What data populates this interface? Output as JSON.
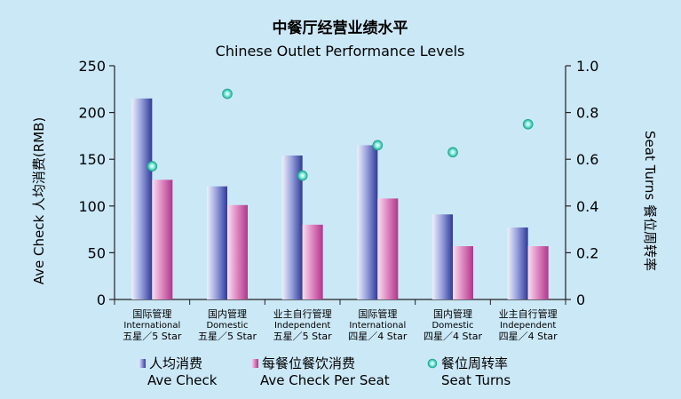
{
  "chart_data": {
    "type": "bar",
    "title": "中餐厅经营业绩水平",
    "subtitle": "Chinese Outlet Performance Levels",
    "ylabel": "Ave Check 人均消费(RMB)",
    "y2label": "Seat Turns 餐位周转率",
    "ylim": [
      0,
      250
    ],
    "y2lim": [
      0,
      1.0
    ],
    "yticks": [
      "0",
      "50",
      "100",
      "150",
      "200",
      "250"
    ],
    "y2ticks": [
      "0",
      "0.2",
      "0.4",
      "0.6",
      "0.8",
      "1.0"
    ],
    "grid": false,
    "legend_position": "bottom",
    "categories": [
      {
        "line1": "国际管理",
        "line2": "International",
        "line3": "五星／5 Star"
      },
      {
        "line1": "国内管理",
        "line2": "Domestic",
        "line3": "五星／5 Star"
      },
      {
        "line1": "业主自行管理",
        "line2": "Independent",
        "line3": "五星／5 Star"
      },
      {
        "line1": "国际管理",
        "line2": "International",
        "line3": "四星／4 Star"
      },
      {
        "line1": "国内管理",
        "line2": "Domestic",
        "line3": "四星／4 Star"
      },
      {
        "line1": "业主自行管理",
        "line2": "Independent",
        "line3": "四星／4 Star"
      }
    ],
    "series": [
      {
        "name_cn": "人均消费",
        "name_en": "Ave Check",
        "type": "bar",
        "axis": "left",
        "color": "#3b47a8",
        "values": [
          215,
          121,
          154,
          165,
          91,
          77
        ]
      },
      {
        "name_cn": "每餐位餐饮消费",
        "name_en": "Ave Check Per Seat",
        "type": "bar",
        "axis": "left",
        "color": "#c74a9a",
        "values": [
          128,
          101,
          80,
          108,
          57,
          57
        ]
      },
      {
        "name_cn": "餐位周转率",
        "name_en": "Seat Turns",
        "type": "scatter",
        "axis": "right",
        "color": "#2fc2b0",
        "values": [
          0.57,
          0.88,
          0.53,
          0.66,
          0.63,
          0.75
        ]
      }
    ]
  }
}
